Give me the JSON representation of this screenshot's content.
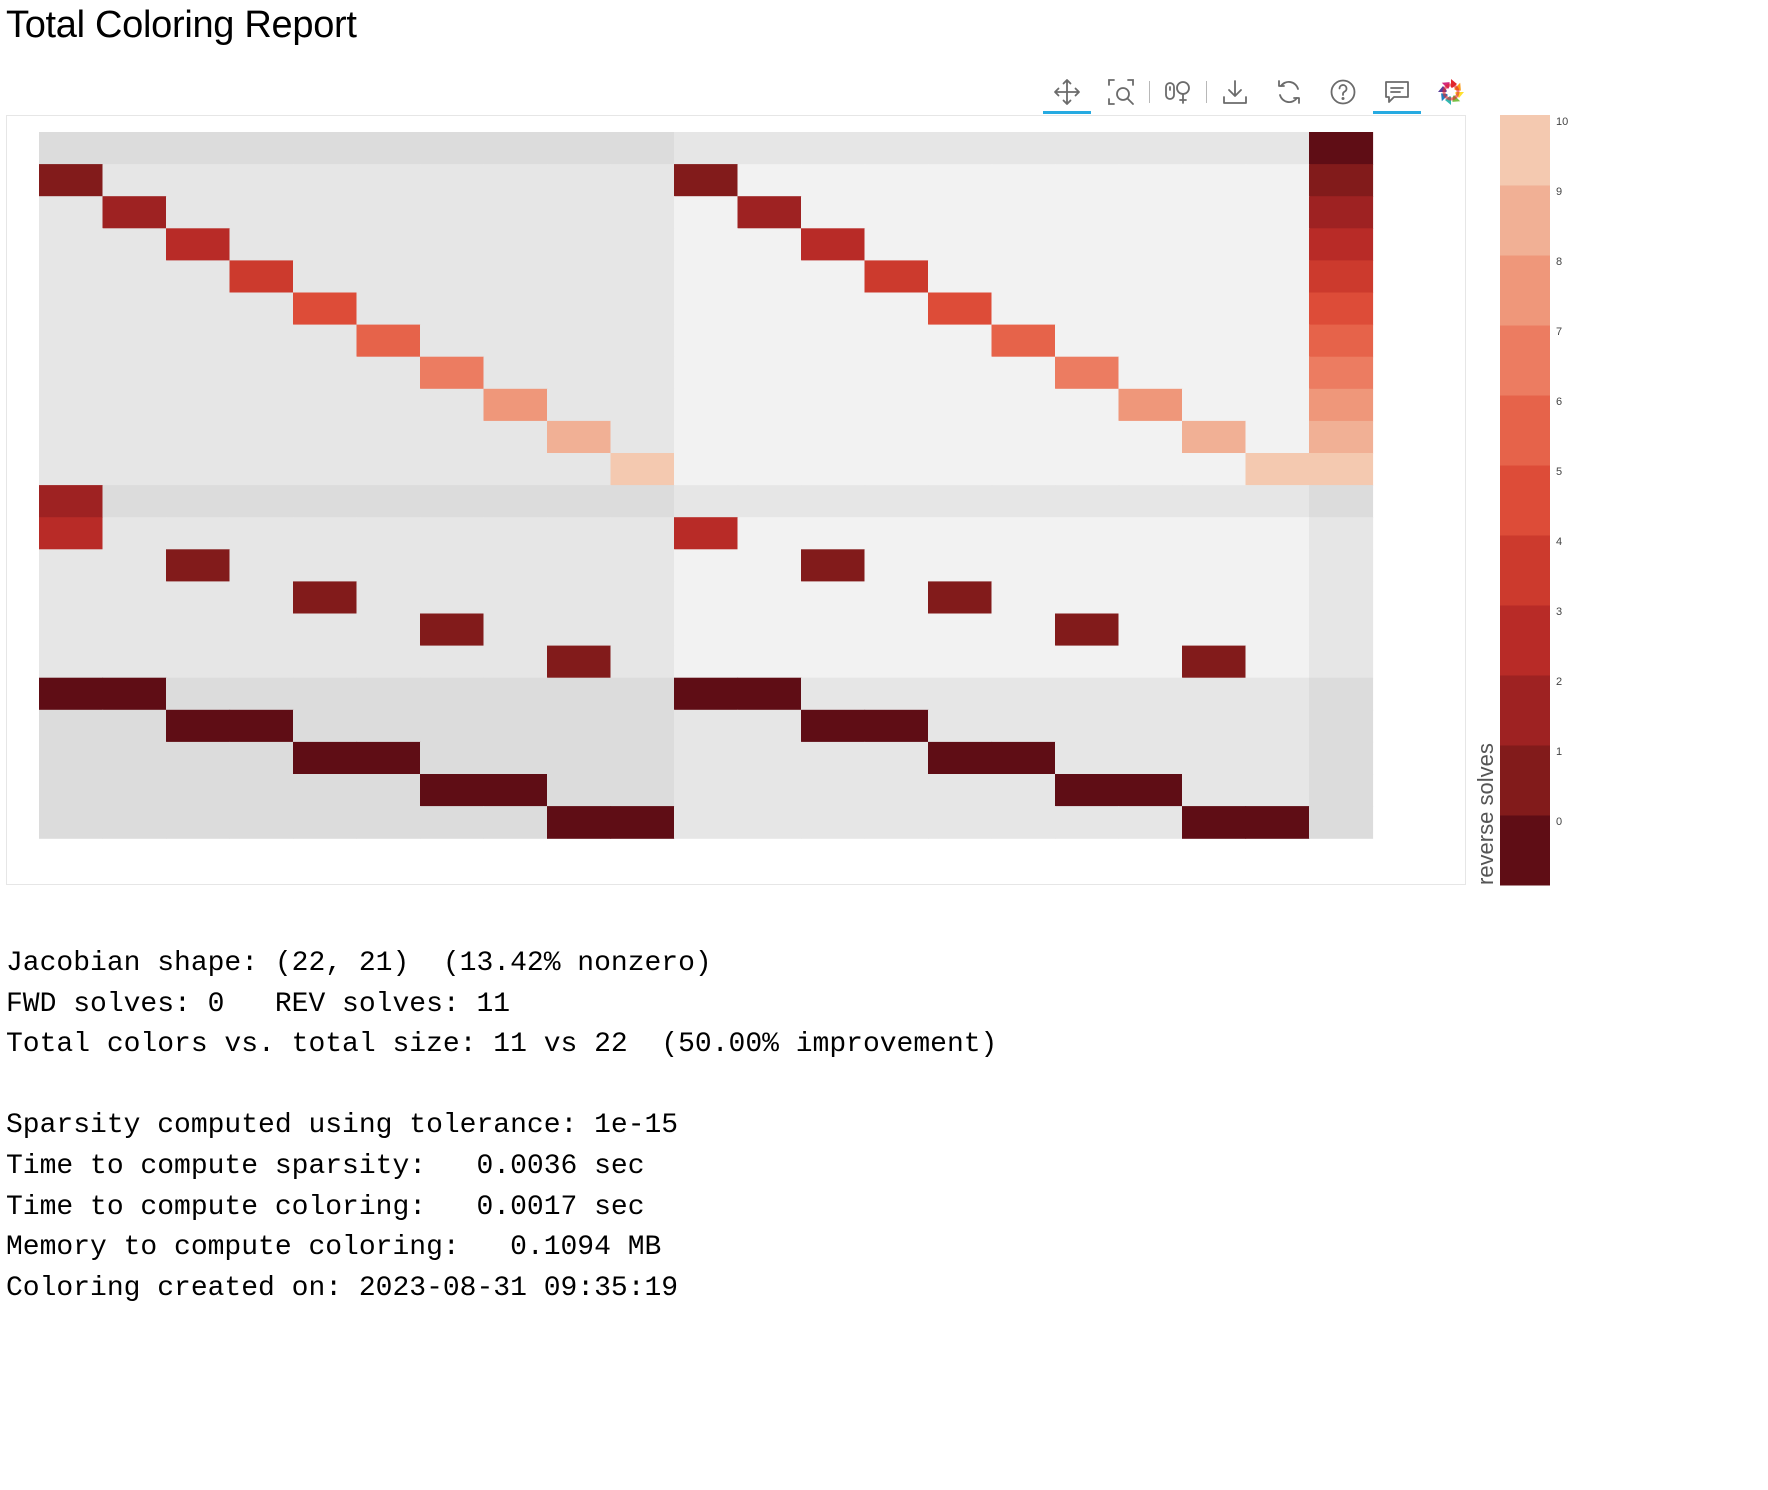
{
  "page": {
    "title": "Total Coloring Report"
  },
  "toolbar": {
    "tools": [
      {
        "name": "pan-tool",
        "icon": "pan-icon",
        "active": true
      },
      {
        "name": "box-zoom-tool",
        "icon": "box-zoom-icon",
        "active": false
      },
      {
        "name": "hover-tool",
        "icon": "hover-icon",
        "active": false
      },
      {
        "name": "save-tool",
        "icon": "save-icon",
        "active": false
      },
      {
        "name": "reset-tool",
        "icon": "reset-icon",
        "active": false
      },
      {
        "name": "help-tool",
        "icon": "help-icon",
        "active": false
      },
      {
        "name": "comment-tool",
        "icon": "comment-icon",
        "active": true
      },
      {
        "name": "bokeh-logo",
        "icon": "bokeh-logo-icon",
        "active": false
      }
    ]
  },
  "chart_data": {
    "type": "heatmap",
    "title": "",
    "n_rows": 22,
    "n_cols": 21,
    "shaded_rows": [
      0,
      11,
      17,
      18,
      19,
      20,
      21
    ],
    "left_block_cols": 10,
    "last_col": 20,
    "cells": [
      {
        "r": 0,
        "c": 20,
        "v": 0
      },
      {
        "r": 1,
        "c": 0,
        "v": 1
      },
      {
        "r": 1,
        "c": 10,
        "v": 1
      },
      {
        "r": 1,
        "c": 20,
        "v": 1
      },
      {
        "r": 2,
        "c": 1,
        "v": 2
      },
      {
        "r": 2,
        "c": 11,
        "v": 2
      },
      {
        "r": 2,
        "c": 20,
        "v": 2
      },
      {
        "r": 3,
        "c": 2,
        "v": 3
      },
      {
        "r": 3,
        "c": 12,
        "v": 3
      },
      {
        "r": 3,
        "c": 20,
        "v": 3
      },
      {
        "r": 4,
        "c": 3,
        "v": 4
      },
      {
        "r": 4,
        "c": 13,
        "v": 4
      },
      {
        "r": 4,
        "c": 20,
        "v": 4
      },
      {
        "r": 5,
        "c": 4,
        "v": 5
      },
      {
        "r": 5,
        "c": 14,
        "v": 5
      },
      {
        "r": 5,
        "c": 20,
        "v": 5
      },
      {
        "r": 6,
        "c": 5,
        "v": 6
      },
      {
        "r": 6,
        "c": 15,
        "v": 6
      },
      {
        "r": 6,
        "c": 20,
        "v": 6
      },
      {
        "r": 7,
        "c": 6,
        "v": 7
      },
      {
        "r": 7,
        "c": 16,
        "v": 7
      },
      {
        "r": 7,
        "c": 20,
        "v": 7
      },
      {
        "r": 8,
        "c": 7,
        "v": 8
      },
      {
        "r": 8,
        "c": 17,
        "v": 8
      },
      {
        "r": 8,
        "c": 20,
        "v": 8
      },
      {
        "r": 9,
        "c": 8,
        "v": 9
      },
      {
        "r": 9,
        "c": 18,
        "v": 9
      },
      {
        "r": 9,
        "c": 20,
        "v": 9
      },
      {
        "r": 10,
        "c": 9,
        "v": 10
      },
      {
        "r": 10,
        "c": 19,
        "v": 10
      },
      {
        "r": 10,
        "c": 20,
        "v": 10
      },
      {
        "r": 11,
        "c": 0,
        "v": 2
      },
      {
        "r": 12,
        "c": 0,
        "v": 3
      },
      {
        "r": 12,
        "c": 10,
        "v": 3
      },
      {
        "r": 13,
        "c": 2,
        "v": 1
      },
      {
        "r": 13,
        "c": 12,
        "v": 1
      },
      {
        "r": 14,
        "c": 4,
        "v": 1
      },
      {
        "r": 14,
        "c": 14,
        "v": 1
      },
      {
        "r": 15,
        "c": 6,
        "v": 1
      },
      {
        "r": 15,
        "c": 16,
        "v": 1
      },
      {
        "r": 16,
        "c": 8,
        "v": 1
      },
      {
        "r": 16,
        "c": 18,
        "v": 1
      },
      {
        "r": 17,
        "c": 0,
        "v": 0
      },
      {
        "r": 17,
        "c": 1,
        "v": 0
      },
      {
        "r": 17,
        "c": 10,
        "v": 0
      },
      {
        "r": 17,
        "c": 11,
        "v": 0
      },
      {
        "r": 18,
        "c": 2,
        "v": 0
      },
      {
        "r": 18,
        "c": 3,
        "v": 0
      },
      {
        "r": 18,
        "c": 12,
        "v": 0
      },
      {
        "r": 18,
        "c": 13,
        "v": 0
      },
      {
        "r": 19,
        "c": 4,
        "v": 0
      },
      {
        "r": 19,
        "c": 5,
        "v": 0
      },
      {
        "r": 19,
        "c": 14,
        "v": 0
      },
      {
        "r": 19,
        "c": 15,
        "v": 0
      },
      {
        "r": 20,
        "c": 6,
        "v": 0
      },
      {
        "r": 20,
        "c": 7,
        "v": 0
      },
      {
        "r": 20,
        "c": 16,
        "v": 0
      },
      {
        "r": 20,
        "c": 17,
        "v": 0
      },
      {
        "r": 21,
        "c": 8,
        "v": 0
      },
      {
        "r": 21,
        "c": 9,
        "v": 0
      },
      {
        "r": 21,
        "c": 18,
        "v": 0
      },
      {
        "r": 21,
        "c": 19,
        "v": 0
      }
    ],
    "background_colors": {
      "left": "#e6e6e6",
      "right": "#f2f2f2",
      "shaded_left": "#dcdcdc",
      "shaded_right": "#e6e6e6",
      "last_col": "#e6e6e6",
      "last_col_shaded": "#dcdcdc"
    },
    "colorbar": {
      "label": "reverse solves",
      "ticks": [
        "0",
        "1",
        "2",
        "3",
        "4",
        "5",
        "6",
        "7",
        "8",
        "9",
        "10"
      ],
      "colors": [
        "#5f0d15",
        "#821b1b",
        "#9e2222",
        "#b82b27",
        "#cc3a2d",
        "#dd4c38",
        "#e6634a",
        "#ec7c61",
        "#ef977a",
        "#f1b095",
        "#f4c9b0"
      ]
    }
  },
  "stats": {
    "lines": [
      "Jacobian shape: (22, 21)  (13.42% nonzero)",
      "FWD solves: 0   REV solves: 11",
      "Total colors vs. total size: 11 vs 22  (50.00% improvement)",
      "",
      "Sparsity computed using tolerance: 1e-15",
      "Time to compute sparsity:   0.0036 sec",
      "Time to compute coloring:   0.0017 sec",
      "Memory to compute coloring:   0.1094 MB",
      "Coloring created on: 2023-08-31 09:35:19"
    ]
  }
}
